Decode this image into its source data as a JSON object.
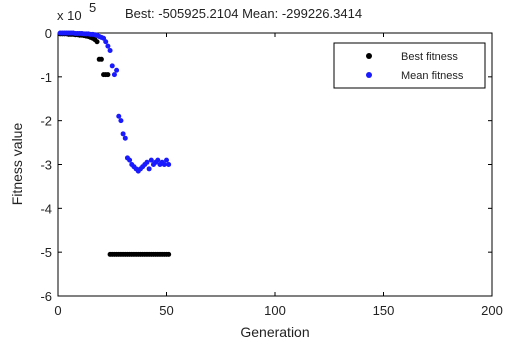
{
  "chart_data": {
    "type": "scatter",
    "title": "Best: -505925.2104 Mean: -299226.3414",
    "xlabel": "Generation",
    "ylabel": "Fitness value",
    "y_multiplier_label": "x 10",
    "y_multiplier_exponent": "5",
    "xlim": [
      0,
      200
    ],
    "ylim": [
      -6,
      0
    ],
    "xticks": [
      "0",
      "50",
      "100",
      "150",
      "200"
    ],
    "yticks": [
      "0",
      "-1",
      "-2",
      "-3",
      "-4",
      "-5",
      "-6"
    ],
    "grid": false,
    "legend_position": "top-right",
    "series": [
      {
        "name": "Best fitness",
        "color": "#000000",
        "x": [
          1,
          2,
          3,
          4,
          5,
          6,
          7,
          8,
          9,
          10,
          11,
          12,
          13,
          14,
          15,
          16,
          17,
          18,
          19,
          20,
          21,
          22,
          23,
          24,
          25,
          26,
          27,
          28,
          29,
          30,
          31,
          32,
          33,
          34,
          35,
          36,
          37,
          38,
          39,
          40,
          41,
          42,
          43,
          44,
          45,
          46,
          47,
          48,
          49,
          50,
          51
        ],
        "y": [
          -0.02,
          -0.02,
          -0.02,
          -0.02,
          -0.03,
          -0.03,
          -0.03,
          -0.04,
          -0.04,
          -0.05,
          -0.05,
          -0.06,
          -0.07,
          -0.08,
          -0.1,
          -0.12,
          -0.15,
          -0.2,
          -0.6,
          -0.6,
          -0.95,
          -0.95,
          -0.95,
          -5.05,
          -5.05,
          -5.05,
          -5.05,
          -5.05,
          -5.05,
          -5.05,
          -5.05,
          -5.05,
          -5.05,
          -5.05,
          -5.05,
          -5.05,
          -5.05,
          -5.05,
          -5.05,
          -5.05,
          -5.05,
          -5.05,
          -5.05,
          -5.05,
          -5.05,
          -5.05,
          -5.05,
          -5.05,
          -5.05,
          -5.05,
          -5.05
        ]
      },
      {
        "name": "Mean fitness",
        "color": "#1a1aff",
        "x": [
          1,
          2,
          3,
          4,
          5,
          6,
          7,
          8,
          9,
          10,
          11,
          12,
          13,
          14,
          15,
          16,
          17,
          18,
          19,
          20,
          21,
          22,
          23,
          24,
          25,
          26,
          27,
          28,
          29,
          30,
          31,
          32,
          33,
          34,
          35,
          36,
          37,
          38,
          39,
          40,
          41,
          42,
          43,
          44,
          45,
          46,
          47,
          48,
          49,
          50,
          51
        ],
        "y": [
          0,
          0,
          0,
          0,
          0,
          0,
          0,
          -0.01,
          -0.01,
          -0.01,
          -0.01,
          -0.02,
          -0.02,
          -0.02,
          -0.03,
          -0.03,
          -0.04,
          -0.05,
          -0.08,
          -0.1,
          -0.12,
          -0.2,
          -0.3,
          -0.4,
          -0.75,
          -0.95,
          -0.85,
          -1.9,
          -2.0,
          -2.3,
          -2.4,
          -2.85,
          -2.9,
          -3.0,
          -3.05,
          -3.1,
          -3.15,
          -3.1,
          -3.05,
          -3.0,
          -2.95,
          -3.1,
          -2.9,
          -3.0,
          -2.95,
          -2.9,
          -3.0,
          -2.95,
          -3.0,
          -2.9,
          -3.0
        ]
      }
    ]
  }
}
